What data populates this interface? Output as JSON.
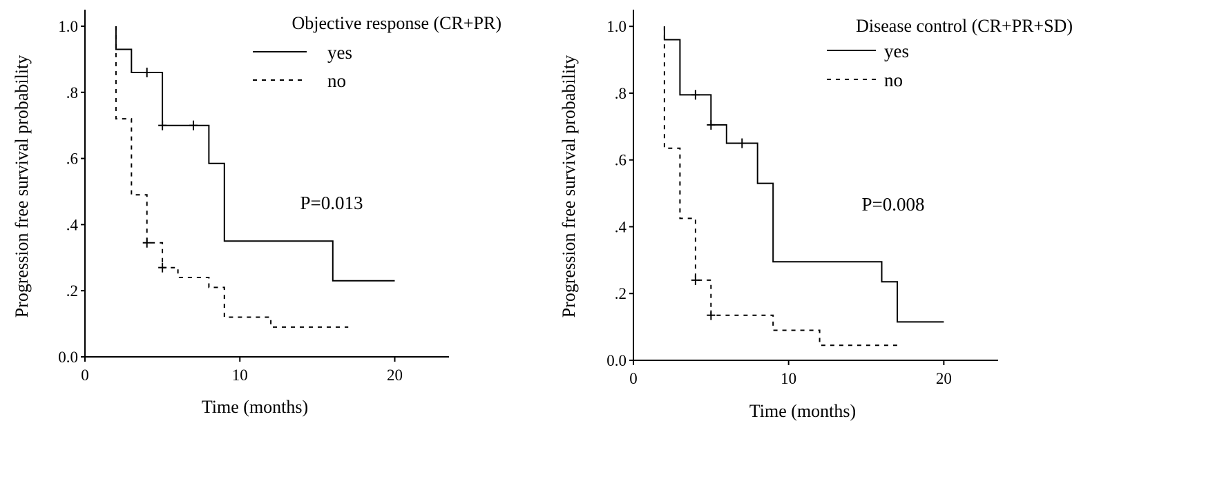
{
  "charts": [
    {
      "type": "line",
      "title": "Objective response (CR+PR)",
      "xlabel": "Time (months)",
      "ylabel": "Progression free survival probability",
      "xlim": [
        0,
        23.5
      ],
      "ylim": [
        0,
        1.05
      ],
      "x_ticks": [
        0,
        10,
        20
      ],
      "x_tick_labels": [
        "0",
        "10",
        "20"
      ],
      "y_ticks": [
        0,
        0.2,
        0.4,
        0.6,
        0.8,
        1.0
      ],
      "y_tick_labels": [
        "0.0",
        ".2",
        ".4",
        ".6",
        ".8",
        "1.0"
      ],
      "annotation": "P=0.013",
      "legend_position": "top-right",
      "grid": false,
      "series": [
        {
          "name": "yes",
          "line_style": "solid",
          "steps": [
            [
              2,
              1.0
            ],
            [
              2,
              0.93
            ],
            [
              3,
              0.93
            ],
            [
              3,
              0.86
            ],
            [
              5,
              0.86
            ],
            [
              5,
              0.7
            ],
            [
              8,
              0.7
            ],
            [
              8,
              0.585
            ],
            [
              9,
              0.585
            ],
            [
              9,
              0.35
            ],
            [
              16,
              0.35
            ],
            [
              16,
              0.23
            ],
            [
              20,
              0.23
            ]
          ],
          "censored": [
            [
              4,
              0.86
            ],
            [
              5,
              0.7
            ],
            [
              7,
              0.7
            ]
          ]
        },
        {
          "name": "no",
          "line_style": "dashed",
          "steps": [
            [
              2,
              1.0
            ],
            [
              2,
              0.72
            ],
            [
              3,
              0.72
            ],
            [
              3,
              0.49
            ],
            [
              4,
              0.49
            ],
            [
              4,
              0.345
            ],
            [
              5,
              0.345
            ],
            [
              5,
              0.27
            ],
            [
              6,
              0.27
            ],
            [
              6,
              0.24
            ],
            [
              8,
              0.24
            ],
            [
              8,
              0.21
            ],
            [
              9,
              0.21
            ],
            [
              9,
              0.12
            ],
            [
              12,
              0.12
            ],
            [
              12,
              0.09
            ],
            [
              17,
              0.09
            ]
          ],
          "censored": [
            [
              4,
              0.345
            ],
            [
              5,
              0.27
            ]
          ]
        }
      ]
    },
    {
      "type": "line",
      "title": "Disease control (CR+PR+SD)",
      "xlabel": "Time (months)",
      "ylabel": "Progression free survival probability",
      "xlim": [
        0,
        23.5
      ],
      "ylim": [
        0,
        1.05
      ],
      "x_ticks": [
        0,
        10,
        20
      ],
      "x_tick_labels": [
        "0",
        "10",
        "20"
      ],
      "y_ticks": [
        0,
        0.2,
        0.4,
        0.6,
        0.8,
        1.0
      ],
      "y_tick_labels": [
        "0.0",
        ".2",
        ".4",
        ".6",
        ".8",
        "1.0"
      ],
      "annotation": "P=0.008",
      "legend_position": "top-right",
      "grid": false,
      "series": [
        {
          "name": "yes",
          "line_style": "solid",
          "steps": [
            [
              2,
              1.0
            ],
            [
              2,
              0.96
            ],
            [
              3,
              0.96
            ],
            [
              3,
              0.795
            ],
            [
              5,
              0.795
            ],
            [
              5,
              0.705
            ],
            [
              6,
              0.705
            ],
            [
              6,
              0.65
            ],
            [
              8,
              0.65
            ],
            [
              8,
              0.53
            ],
            [
              9,
              0.53
            ],
            [
              9,
              0.295
            ],
            [
              16,
              0.295
            ],
            [
              16,
              0.235
            ],
            [
              17,
              0.235
            ],
            [
              17,
              0.115
            ],
            [
              20,
              0.115
            ]
          ],
          "censored": [
            [
              4,
              0.795
            ],
            [
              5,
              0.705
            ],
            [
              7,
              0.65
            ]
          ]
        },
        {
          "name": "no",
          "line_style": "dashed",
          "steps": [
            [
              2,
              1.0
            ],
            [
              2,
              0.635
            ],
            [
              3,
              0.635
            ],
            [
              3,
              0.425
            ],
            [
              4,
              0.425
            ],
            [
              4,
              0.24
            ],
            [
              5,
              0.24
            ],
            [
              5,
              0.135
            ],
            [
              9,
              0.135
            ],
            [
              9,
              0.09
            ],
            [
              12,
              0.09
            ],
            [
              12,
              0.045
            ],
            [
              17,
              0.045
            ]
          ],
          "censored": [
            [
              4,
              0.24
            ],
            [
              5,
              0.135
            ]
          ]
        }
      ]
    }
  ]
}
